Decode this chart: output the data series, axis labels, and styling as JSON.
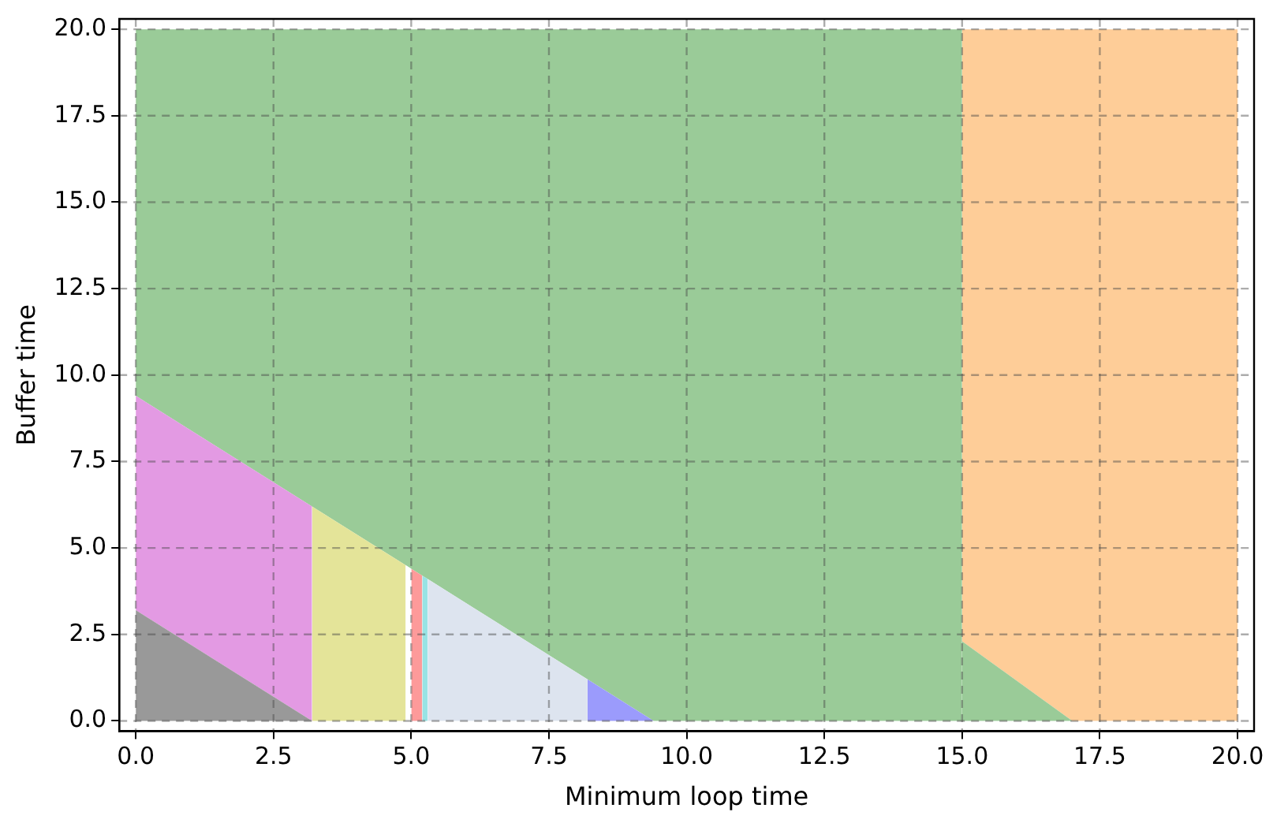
{
  "chart_data": {
    "type": "area",
    "stacked": true,
    "xlabel": "Minimum loop time",
    "ylabel": "Buffer time",
    "xlim": [
      -0.3,
      20.3
    ],
    "ylim": [
      -0.3,
      20.3
    ],
    "xticks": [
      {
        "value": 0,
        "label": "0.0"
      },
      {
        "value": 2.5,
        "label": "2.5"
      },
      {
        "value": 5,
        "label": "5.0"
      },
      {
        "value": 7.5,
        "label": "7.5"
      },
      {
        "value": 10,
        "label": "10.0"
      },
      {
        "value": 12.5,
        "label": "12.5"
      },
      {
        "value": 15,
        "label": "15.0"
      },
      {
        "value": 17.5,
        "label": "17.5"
      },
      {
        "value": 20,
        "label": "20.0"
      }
    ],
    "yticks": [
      {
        "value": 0,
        "label": "0.0"
      },
      {
        "value": 2.5,
        "label": "2.5"
      },
      {
        "value": 5,
        "label": "5.0"
      },
      {
        "value": 7.5,
        "label": "7.5"
      },
      {
        "value": 10,
        "label": "10.0"
      },
      {
        "value": 12.5,
        "label": "12.5"
      },
      {
        "value": 15,
        "label": "15.0"
      },
      {
        "value": 17.5,
        "label": "17.5"
      },
      {
        "value": 20,
        "label": "20.0"
      }
    ],
    "grid": true,
    "legend": false,
    "x": [
      0,
      3.2,
      3.2,
      4.9,
      4.9,
      5.0,
      5.0,
      5.2,
      5.2,
      5.3,
      5.3,
      8.2,
      8.2,
      9.4,
      15,
      15,
      17,
      20
    ],
    "series": [
      {
        "color": "#999999",
        "values": [
          3.2,
          0,
          null,
          null,
          null,
          null,
          null,
          null,
          null,
          null,
          null,
          null,
          null,
          null,
          null,
          null,
          null,
          null
        ]
      },
      {
        "color": "#e39ae3",
        "values": [
          6.2,
          6.2,
          null,
          null,
          null,
          null,
          null,
          null,
          null,
          null,
          null,
          null,
          null,
          null,
          null,
          null,
          null,
          null
        ]
      },
      {
        "color": "#e4e499",
        "values": [
          null,
          null,
          6.2,
          4.5,
          null,
          null,
          null,
          null,
          null,
          null,
          null,
          null,
          null,
          null,
          null,
          null,
          null,
          null
        ]
      },
      {
        "color": "#ffffff",
        "values": [
          null,
          null,
          null,
          null,
          4.5,
          4.4,
          null,
          null,
          null,
          null,
          null,
          null,
          null,
          null,
          null,
          null,
          null,
          null
        ]
      },
      {
        "color": "#fd9a9a",
        "values": [
          null,
          null,
          null,
          null,
          null,
          null,
          4.4,
          4.2,
          null,
          null,
          null,
          null,
          null,
          null,
          null,
          null,
          null,
          null
        ]
      },
      {
        "color": "#98e3e4",
        "values": [
          null,
          null,
          null,
          null,
          null,
          null,
          null,
          null,
          4.2,
          4.1,
          null,
          null,
          null,
          null,
          null,
          null,
          null,
          null
        ]
      },
      {
        "color": "#dde4ef",
        "values": [
          null,
          null,
          null,
          null,
          null,
          null,
          null,
          null,
          null,
          null,
          4.1,
          1.2,
          null,
          null,
          null,
          null,
          null,
          null
        ]
      },
      {
        "color": "#9b9bfc",
        "values": [
          null,
          null,
          null,
          null,
          null,
          null,
          null,
          null,
          null,
          null,
          null,
          null,
          1.2,
          0,
          null,
          null,
          null,
          null
        ]
      },
      {
        "color": "#9acb98",
        "values": [
          null,
          null,
          null,
          null,
          null,
          null,
          null,
          null,
          null,
          null,
          null,
          null,
          null,
          null,
          null,
          2.3,
          0,
          null
        ]
      },
      {
        "color": "#fecd98",
        "values": [
          null,
          null,
          null,
          null,
          null,
          null,
          null,
          null,
          null,
          null,
          null,
          null,
          null,
          null,
          null,
          17.7,
          20,
          20
        ]
      },
      {
        "color": "#9acb98",
        "values": [
          10.6,
          13.8,
          13.8,
          15.5,
          15.5,
          15.6,
          15.6,
          15.8,
          15.8,
          15.9,
          15.9,
          18.8,
          18.8,
          20,
          20,
          null,
          null,
          null
        ]
      }
    ]
  }
}
